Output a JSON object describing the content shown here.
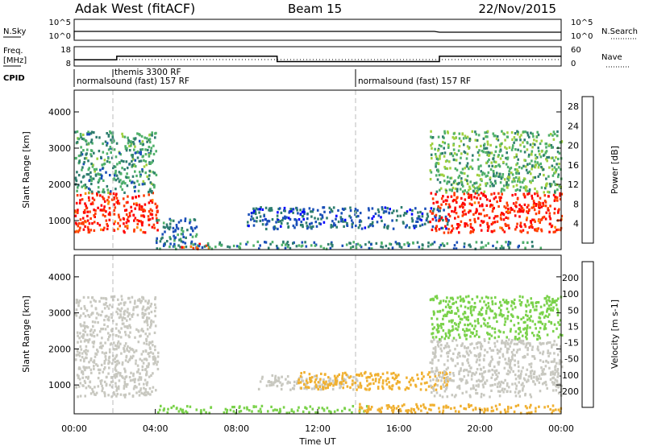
{
  "header": {
    "station": "Adak West (fitACF)",
    "beam": "Beam 15",
    "date": "22/Nov/2015"
  },
  "status_panels": {
    "nsky_label": "N.Sky",
    "nsearch_label": "N.Search",
    "nsky_ticks": [
      "10^5",
      "10^0"
    ],
    "nsky_right_ticks": [
      "10^5",
      "10^0"
    ],
    "freq_label": "Freq.",
    "freq_unit": "[MHz]",
    "freq_ticks": [
      "18",
      "8"
    ],
    "nave_ticks": [
      "60",
      "0"
    ],
    "nave_label": "Nave",
    "cpid_label": "CPID",
    "cpid_segments": [
      {
        "label": "normalsound (fast) 157 RF",
        "start_h": 0,
        "end_h": 14
      },
      {
        "label": "themis 3300 RF",
        "start_h": 2,
        "end_h": 2.1
      },
      {
        "label": "normalsound (fast) 157 RF",
        "start_h": 14,
        "end_h": 24
      }
    ],
    "freq_steps": [
      {
        "start_h": 0,
        "end_h": 2.1,
        "freq_mhz": 11.5
      },
      {
        "start_h": 2.1,
        "end_h": 10,
        "freq_mhz": 13.5
      },
      {
        "start_h": 10,
        "end_h": 18,
        "freq_mhz": 10.5
      },
      {
        "start_h": 18,
        "end_h": 24,
        "freq_mhz": 13.5
      }
    ]
  },
  "chart_data": [
    {
      "type": "heatmap",
      "panel": "power",
      "ylabel": "Slant Range [km]",
      "xlim": [
        0,
        24
      ],
      "ylim": [
        200,
        4600
      ],
      "yticks": [
        1000,
        2000,
        3000,
        4000
      ],
      "colorbar": {
        "label": "Power [dB]",
        "ticks": [
          4,
          8,
          12,
          16,
          20,
          24,
          28
        ],
        "range": [
          0,
          30
        ],
        "colors": [
          "#0000ff",
          "#1a4fb8",
          "#2e7d6e",
          "#4fb06a",
          "#a0d040",
          "#f2c200",
          "#ff8a00",
          "#ff3b00",
          "#ff0000"
        ]
      },
      "regions": [
        {
          "t": [
            0,
            4.1
          ],
          "r": [
            700,
            1800
          ],
          "level": 27
        },
        {
          "t": [
            0,
            4.0
          ],
          "r": [
            1800,
            3500
          ],
          "level": 10
        },
        {
          "t": [
            4.0,
            6.0
          ],
          "r": [
            250,
            1100
          ],
          "level": 8
        },
        {
          "t": [
            5.2,
            6.6
          ],
          "r": [
            250,
            400
          ],
          "level": 24
        },
        {
          "t": [
            6.0,
            23.0
          ],
          "r": [
            250,
            450
          ],
          "level": 9
        },
        {
          "t": [
            8.5,
            18.5
          ],
          "r": [
            800,
            1400
          ],
          "level": 6
        },
        {
          "t": [
            17.5,
            24
          ],
          "r": [
            700,
            1800
          ],
          "level": 27
        },
        {
          "t": [
            17.5,
            24
          ],
          "r": [
            1800,
            3500
          ],
          "level": 12
        }
      ]
    },
    {
      "type": "heatmap",
      "panel": "velocity",
      "ylabel": "Slant Range [km]",
      "xlabel": "Time UT",
      "xlim": [
        0,
        24
      ],
      "ylim": [
        200,
        4600
      ],
      "xticks": [
        "00:00",
        "04:00",
        "08:00",
        "12:00",
        "16:00",
        "20:00",
        "00:00"
      ],
      "yticks": [
        1000,
        2000,
        3000,
        4000
      ],
      "colorbar": {
        "label": "Velocity [m s-1]",
        "ticks": [
          200,
          100,
          50,
          15,
          -15,
          -50,
          -100,
          -200
        ],
        "colors": [
          "#1a3fb0",
          "#2f6a8a",
          "#3a9a3a",
          "#7ad24a",
          "#c8c8c0",
          "#f0b030",
          "#ff8000",
          "#ff3a00",
          "#ff0000"
        ]
      },
      "regions": [
        {
          "t": [
            0,
            4.1
          ],
          "r": [
            700,
            2500
          ],
          "level": 0
        },
        {
          "t": [
            0,
            4.0
          ],
          "r": [
            2500,
            3500
          ],
          "level": 0
        },
        {
          "t": [
            4.0,
            14.5
          ],
          "r": [
            250,
            450
          ],
          "level": 40
        },
        {
          "t": [
            9.0,
            14.0
          ],
          "r": [
            900,
            1300
          ],
          "level": 0
        },
        {
          "t": [
            11.0,
            18.5
          ],
          "r": [
            900,
            1400
          ],
          "level": -40
        },
        {
          "t": [
            14.0,
            24
          ],
          "r": [
            250,
            500
          ],
          "level": -40
        },
        {
          "t": [
            17.5,
            24
          ],
          "r": [
            700,
            2300
          ],
          "level": 0
        },
        {
          "t": [
            17.5,
            24
          ],
          "r": [
            2300,
            3500
          ],
          "level": 40
        }
      ]
    }
  ]
}
